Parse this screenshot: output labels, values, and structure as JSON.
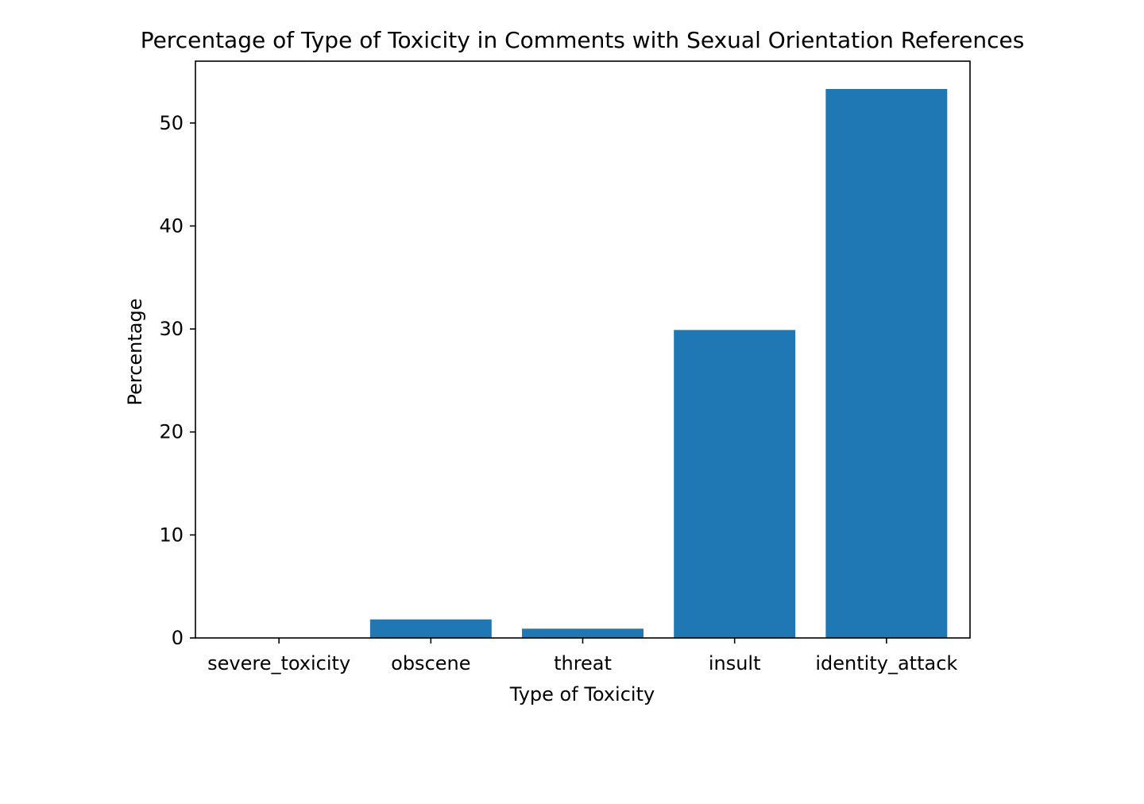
{
  "chart_data": {
    "type": "bar",
    "title": "Percentage of Type of Toxicity in Comments with Sexual Orientation References",
    "xlabel": "Type of Toxicity",
    "ylabel": "Percentage",
    "categories": [
      "severe_toxicity",
      "obscene",
      "threat",
      "insult",
      "identity_attack"
    ],
    "values": [
      0.0,
      1.8,
      0.9,
      29.9,
      53.3
    ],
    "ylim": [
      0,
      56
    ],
    "yticks": [
      0,
      10,
      20,
      30,
      40,
      50
    ],
    "grid": false,
    "bar_color": "#1f77b4"
  }
}
